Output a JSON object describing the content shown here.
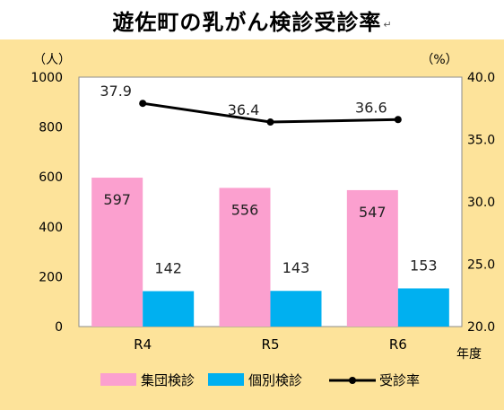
{
  "title": "遊佐町の乳がん検診受診率",
  "title_mark": "↵",
  "chart_data": {
    "type": "bar",
    "categories": [
      "R4",
      "R5",
      "R6"
    ],
    "series": [
      {
        "name": "集団検診",
        "values": [
          597,
          556,
          547
        ],
        "color": "#fba0cf",
        "kind": "bar",
        "axis": "left"
      },
      {
        "name": "個別検診",
        "values": [
          142,
          143,
          153
        ],
        "color": "#00b0f0",
        "kind": "bar",
        "axis": "left"
      },
      {
        "name": "受診率",
        "values": [
          37.9,
          36.4,
          36.6
        ],
        "color": "#000000",
        "kind": "line",
        "axis": "right"
      }
    ],
    "ylabel": "（人）",
    "ylabel_right": "（%）",
    "xlabel": "年度",
    "ylim": [
      0,
      1000
    ],
    "ylim_right": [
      20.0,
      40.0
    ],
    "yticks": [
      "0",
      "200",
      "400",
      "600",
      "800",
      "1000"
    ],
    "yticks_right": [
      "20.0",
      "25.0",
      "30.0",
      "35.0",
      "40.0"
    ],
    "legend_position": "bottom",
    "grid": false
  }
}
